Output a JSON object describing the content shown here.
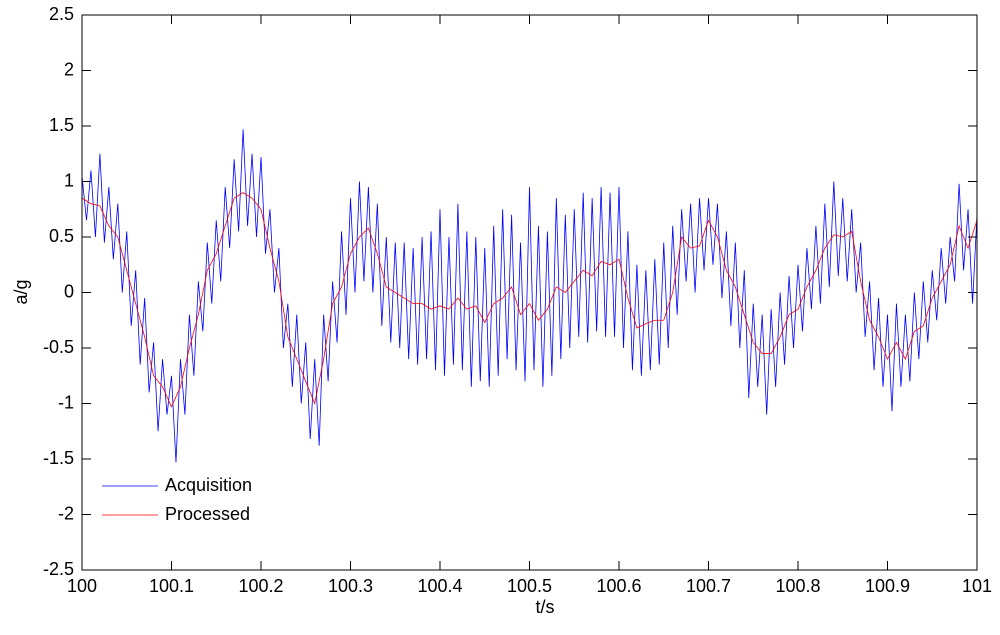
{
  "chart_data": {
    "type": "line",
    "xlabel": "t/s",
    "ylabel": "a/g",
    "xlim": [
      100,
      101
    ],
    "ylim": [
      -2.5,
      2.5
    ],
    "xticks": [
      100,
      100.1,
      100.2,
      100.3,
      100.4,
      100.5,
      100.6,
      100.7,
      100.8,
      100.9,
      101
    ],
    "yticks": [
      -2.5,
      -2,
      -1.5,
      -1,
      -0.5,
      0,
      0.5,
      1,
      1.5,
      2,
      2.5
    ],
    "legend": "lower left",
    "series": [
      {
        "name": "Acquisition",
        "color": "#0000ff",
        "x": [
          100,
          100.005,
          100.01,
          100.015,
          100.02,
          100.025,
          100.03,
          100.035,
          100.04,
          100.045,
          100.05,
          100.055,
          100.06,
          100.065,
          100.07,
          100.075,
          100.08,
          100.085,
          100.09,
          100.095,
          100.1,
          100.105,
          100.11,
          100.115,
          100.12,
          100.125,
          100.13,
          100.135,
          100.14,
          100.145,
          100.15,
          100.155,
          100.16,
          100.165,
          100.17,
          100.175,
          100.18,
          100.185,
          100.19,
          100.195,
          100.2,
          100.205,
          100.21,
          100.215,
          100.22,
          100.225,
          100.23,
          100.235,
          100.24,
          100.245,
          100.25,
          100.255,
          100.26,
          100.265,
          100.27,
          100.275,
          100.28,
          100.285,
          100.29,
          100.295,
          100.3,
          100.305,
          100.31,
          100.315,
          100.32,
          100.325,
          100.33,
          100.335,
          100.34,
          100.345,
          100.35,
          100.355,
          100.36,
          100.365,
          100.37,
          100.375,
          100.38,
          100.385,
          100.39,
          100.395,
          100.4,
          100.405,
          100.41,
          100.415,
          100.42,
          100.425,
          100.43,
          100.435,
          100.44,
          100.445,
          100.45,
          100.455,
          100.46,
          100.465,
          100.47,
          100.475,
          100.48,
          100.485,
          100.49,
          100.495,
          100.5,
          100.505,
          100.51,
          100.515,
          100.52,
          100.525,
          100.53,
          100.535,
          100.54,
          100.545,
          100.55,
          100.555,
          100.56,
          100.565,
          100.57,
          100.575,
          100.58,
          100.585,
          100.59,
          100.595,
          100.6,
          100.605,
          100.61,
          100.615,
          100.62,
          100.625,
          100.63,
          100.635,
          100.64,
          100.645,
          100.65,
          100.655,
          100.66,
          100.665,
          100.67,
          100.675,
          100.68,
          100.685,
          100.69,
          100.695,
          100.7,
          100.705,
          100.71,
          100.715,
          100.72,
          100.725,
          100.73,
          100.735,
          100.74,
          100.745,
          100.75,
          100.755,
          100.76,
          100.765,
          100.77,
          100.775,
          100.78,
          100.785,
          100.79,
          100.795,
          100.8,
          100.805,
          100.81,
          100.815,
          100.82,
          100.825,
          100.83,
          100.835,
          100.84,
          100.845,
          100.85,
          100.855,
          100.86,
          100.865,
          100.87,
          100.875,
          100.88,
          100.885,
          100.89,
          100.895,
          100.9,
          100.905,
          100.91,
          100.915,
          100.92,
          100.925,
          100.93,
          100.935,
          100.94,
          100.945,
          100.95,
          100.955,
          100.96,
          100.965,
          100.97,
          100.975,
          100.98,
          100.985,
          100.99,
          100.995,
          101
        ],
        "values": [
          1.05,
          0.65,
          1.1,
          0.5,
          1.25,
          0.45,
          0.95,
          0.3,
          0.8,
          0.0,
          0.55,
          -0.3,
          0.2,
          -0.65,
          -0.05,
          -0.9,
          -0.45,
          -1.25,
          -0.6,
          -1.1,
          -0.75,
          -1.53,
          -0.6,
          -1.1,
          -0.2,
          -0.75,
          0.1,
          -0.35,
          0.45,
          -0.1,
          0.65,
          0.1,
          0.95,
          0.4,
          1.2,
          0.55,
          1.47,
          0.6,
          1.25,
          0.5,
          1.22,
          0.35,
          0.75,
          0.0,
          0.4,
          -0.5,
          -0.1,
          -0.85,
          -0.2,
          -1.0,
          -0.45,
          -1.32,
          -0.6,
          -1.38,
          -0.2,
          -0.8,
          0.1,
          -0.45,
          0.55,
          -0.2,
          0.85,
          0.0,
          1.0,
          0.1,
          0.95,
          0.0,
          0.8,
          -0.3,
          0.5,
          -0.45,
          0.45,
          -0.5,
          0.45,
          -0.6,
          0.4,
          -0.65,
          0.5,
          -0.6,
          0.55,
          -0.7,
          0.75,
          -0.75,
          0.5,
          -0.65,
          0.8,
          -0.7,
          0.55,
          -0.85,
          0.5,
          -0.8,
          0.4,
          -0.85,
          0.6,
          -0.75,
          0.75,
          -0.6,
          0.7,
          -0.7,
          0.45,
          -0.8,
          0.95,
          -0.7,
          0.6,
          -0.85,
          0.55,
          -0.75,
          0.85,
          -0.6,
          0.7,
          -0.5,
          0.75,
          -0.4,
          0.9,
          -0.45,
          0.85,
          -0.35,
          0.95,
          -0.4,
          0.9,
          -0.4,
          0.95,
          -0.5,
          0.55,
          -0.7,
          0.25,
          -0.75,
          0.2,
          -0.7,
          0.3,
          -0.65,
          0.45,
          -0.5,
          0.6,
          -0.2,
          0.75,
          0.1,
          0.8,
          0.0,
          0.85,
          0.2,
          0.85,
          0.25,
          0.8,
          -0.05,
          0.55,
          -0.3,
          0.45,
          -0.5,
          0.2,
          -0.95,
          -0.1,
          -0.85,
          -0.2,
          -1.1,
          -0.15,
          -0.85,
          0.0,
          -0.65,
          0.15,
          -0.5,
          0.25,
          -0.35,
          0.4,
          -0.15,
          0.6,
          -0.1,
          0.8,
          0.05,
          1.0,
          0.15,
          0.85,
          0.1,
          0.75,
          0.0,
          0.45,
          -0.4,
          0.1,
          -0.7,
          -0.05,
          -0.85,
          -0.2,
          -1.07,
          -0.1,
          -0.85,
          -0.2,
          -0.8,
          0.0,
          -0.6,
          0.1,
          -0.45,
          0.2,
          -0.25,
          0.4,
          -0.1,
          0.5,
          0.1,
          0.98,
          0.2,
          0.75,
          -0.1,
          0.7
        ]
      },
      {
        "name": "Processed",
        "color": "#ff0000",
        "x": [
          100,
          100.01,
          100.02,
          100.03,
          100.04,
          100.05,
          100.06,
          100.07,
          100.08,
          100.09,
          100.1,
          100.11,
          100.12,
          100.13,
          100.14,
          100.15,
          100.16,
          100.17,
          100.18,
          100.19,
          100.2,
          100.21,
          100.22,
          100.23,
          100.24,
          100.25,
          100.26,
          100.27,
          100.28,
          100.29,
          100.3,
          100.31,
          100.32,
          100.33,
          100.34,
          100.35,
          100.36,
          100.37,
          100.38,
          100.39,
          100.4,
          100.41,
          100.42,
          100.43,
          100.44,
          100.45,
          100.46,
          100.47,
          100.48,
          100.49,
          100.5,
          100.51,
          100.52,
          100.53,
          100.54,
          100.55,
          100.56,
          100.57,
          100.58,
          100.59,
          100.6,
          100.61,
          100.62,
          100.63,
          100.64,
          100.65,
          100.66,
          100.67,
          100.68,
          100.69,
          100.7,
          100.71,
          100.72,
          100.73,
          100.74,
          100.75,
          100.76,
          100.77,
          100.78,
          100.79,
          100.8,
          100.81,
          100.82,
          100.83,
          100.84,
          100.85,
          100.86,
          100.87,
          100.88,
          100.89,
          100.9,
          100.91,
          100.92,
          100.93,
          100.94,
          100.95,
          100.96,
          100.97,
          100.98,
          100.99,
          101
        ],
        "values": [
          0.85,
          0.8,
          0.78,
          0.6,
          0.5,
          0.2,
          -0.1,
          -0.4,
          -0.75,
          -0.85,
          -1.03,
          -0.85,
          -0.5,
          -0.2,
          0.2,
          0.35,
          0.6,
          0.85,
          0.9,
          0.85,
          0.75,
          0.4,
          0.1,
          -0.4,
          -0.6,
          -0.8,
          -1.0,
          -0.6,
          -0.1,
          0.05,
          0.35,
          0.5,
          0.58,
          0.35,
          0.05,
          0,
          -0.05,
          -0.1,
          -0.1,
          -0.15,
          -0.12,
          -0.15,
          -0.05,
          -0.15,
          -0.12,
          -0.27,
          -0.1,
          -0.05,
          0.05,
          -0.2,
          -0.1,
          -0.25,
          -0.15,
          0.05,
          0,
          0.1,
          0.2,
          0.15,
          0.28,
          0.25,
          0.3,
          -0.05,
          -0.32,
          -0.28,
          -0.25,
          -0.25,
          0,
          0.5,
          0.4,
          0.42,
          0.65,
          0.5,
          0.2,
          0.05,
          -0.2,
          -0.45,
          -0.55,
          -0.55,
          -0.4,
          -0.2,
          -0.15,
          0.05,
          0.2,
          0.4,
          0.52,
          0.5,
          0.55,
          0.1,
          -0.25,
          -0.4,
          -0.6,
          -0.45,
          -0.6,
          -0.35,
          -0.3,
          -0.05,
          0.1,
          0.25,
          0.6,
          0.4,
          0.65
        ]
      }
    ]
  }
}
